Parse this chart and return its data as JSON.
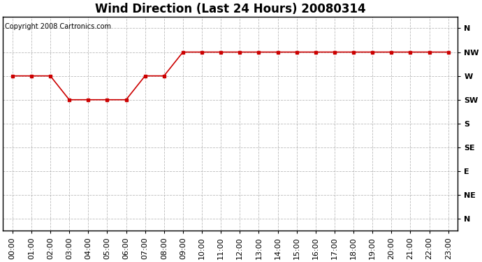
{
  "title": "Wind Direction (Last 24 Hours) 20080314",
  "copyright": "Copyright 2008 Cartronics.com",
  "x_labels": [
    "00:00",
    "01:00",
    "02:00",
    "03:00",
    "04:00",
    "05:00",
    "06:00",
    "07:00",
    "08:00",
    "09:00",
    "10:00",
    "11:00",
    "12:00",
    "13:00",
    "14:00",
    "15:00",
    "16:00",
    "17:00",
    "18:00",
    "19:00",
    "20:00",
    "21:00",
    "22:00",
    "23:00"
  ],
  "y_ticks": [
    360,
    315,
    270,
    225,
    180,
    135,
    90,
    45,
    0
  ],
  "y_tick_labels": [
    "N",
    "NW",
    "W",
    "SW",
    "S",
    "SE",
    "E",
    "NE",
    "N"
  ],
  "y_values": [
    270,
    270,
    270,
    225,
    225,
    225,
    225,
    270,
    270,
    315,
    315,
    315,
    315,
    315,
    315,
    315,
    315,
    315,
    315,
    315,
    315,
    315,
    315,
    315
  ],
  "line_color": "#cc0000",
  "marker": "s",
  "marker_size": 3,
  "bg_color": "#ffffff",
  "plot_bg_color": "#ffffff",
  "grid_color": "#aaaaaa",
  "ylim_min": -22,
  "ylim_max": 382,
  "title_fontsize": 12,
  "copyright_fontsize": 7,
  "tick_fontsize": 8,
  "fig_width": 6.9,
  "fig_height": 3.75,
  "dpi": 100
}
